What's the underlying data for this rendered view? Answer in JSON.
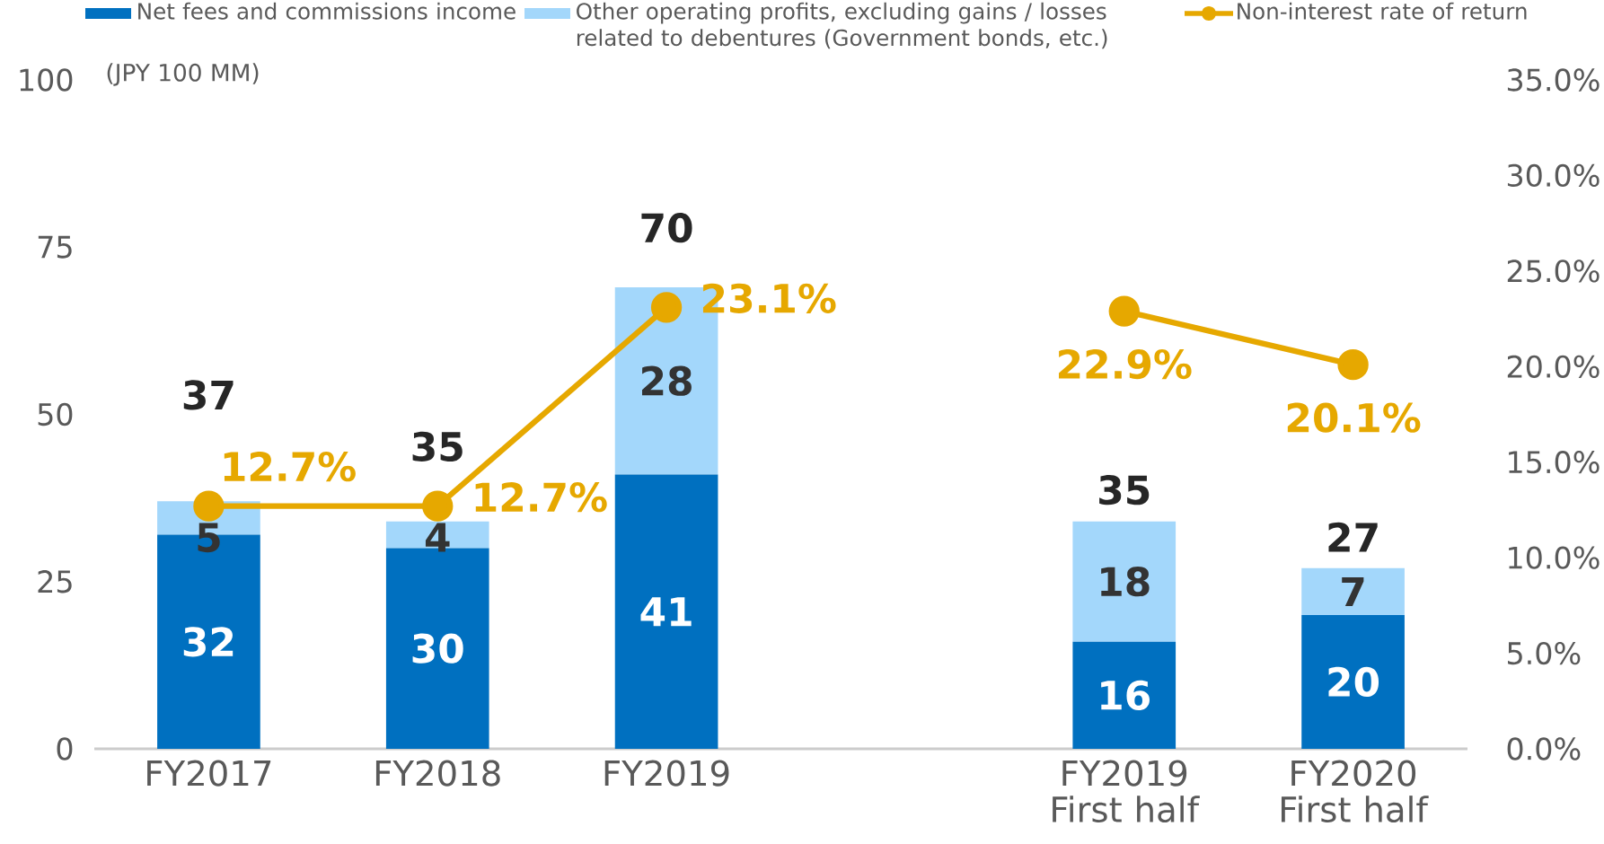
{
  "chart_data": {
    "type": "bar",
    "stacked": true,
    "ylabel": "(JPY 100 MM)",
    "legend": "top",
    "categories": [
      "FY2017",
      "FY2018",
      "FY2019",
      null,
      "FY2019 First half",
      "FY2020 First half"
    ],
    "ylim": [
      0,
      100
    ],
    "yticks": [
      0,
      25,
      50,
      75,
      100
    ],
    "y2lim": [
      0,
      35
    ],
    "y2ticks": [
      {
        "value": 0,
        "label": "0.0%"
      },
      {
        "value": 5,
        "label": "5.0%"
      },
      {
        "value": 10,
        "label": "10.0%"
      },
      {
        "value": 15,
        "label": "15.0%"
      },
      {
        "value": 20,
        "label": "20.0%"
      },
      {
        "value": 25,
        "label": "25.0%"
      },
      {
        "value": 30,
        "label": "30.0%"
      },
      {
        "value": 35,
        "label": "35.0%"
      }
    ],
    "totals": [
      "37",
      "35",
      "70",
      null,
      "35",
      "27"
    ],
    "series": [
      {
        "name": "Net fees and commissions income",
        "color": "#0070c0",
        "values": [
          32,
          30,
          41,
          null,
          16,
          20
        ],
        "value_labels": [
          "32",
          "30",
          "41",
          null,
          "16",
          "20"
        ]
      },
      {
        "name": "Other operating profits, excluding gains / losses related to debentures (Government bonds, etc.)",
        "color": "#a3d7fb",
        "values": [
          5,
          4,
          28,
          null,
          18,
          7
        ],
        "value_labels": [
          "5",
          "4",
          "28",
          null,
          "18",
          "7"
        ]
      },
      {
        "name": "Non-interest rate of return",
        "type": "line",
        "axis": "y2",
        "color": "#e6a800",
        "marker": "circle",
        "line_style": "solid",
        "values": [
          12.7,
          12.7,
          23.1,
          null,
          22.9,
          20.1
        ],
        "value_labels": [
          "12.7%",
          "12.7%",
          "23.1%",
          null,
          "22.9%",
          "20.1%"
        ]
      }
    ]
  }
}
